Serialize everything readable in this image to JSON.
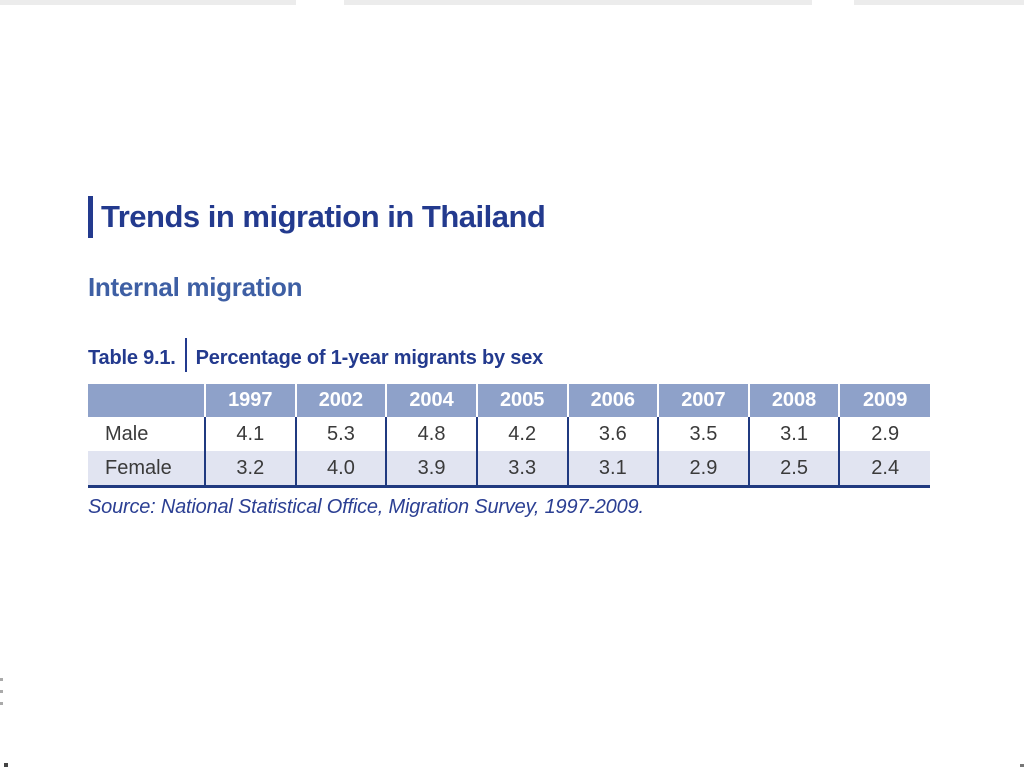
{
  "page": {
    "title": "Trends in migration in Thailand",
    "section_heading": "Internal migration",
    "table_label": "Table 9.1.",
    "table_caption": "Percentage of 1-year migrants by sex",
    "source_note": "Source:  National Statistical Office, Migration Survey, 1997-2009."
  },
  "table": {
    "columns": [
      "1997",
      "2002",
      "2004",
      "2005",
      "2006",
      "2007",
      "2008",
      "2009"
    ],
    "rows": [
      {
        "label": "Male",
        "values": [
          "4.1",
          "5.3",
          "4.8",
          "4.2",
          "3.6",
          "3.5",
          "3.1",
          "2.9"
        ]
      },
      {
        "label": "Female",
        "values": [
          "3.2",
          "4.0",
          "3.9",
          "3.3",
          "3.1",
          "2.9",
          "2.5",
          "2.4"
        ]
      }
    ]
  },
  "chart_data": {
    "type": "table",
    "title": "Percentage of 1-year migrants by sex",
    "categories": [
      "1997",
      "2002",
      "2004",
      "2005",
      "2006",
      "2007",
      "2008",
      "2009"
    ],
    "series": [
      {
        "name": "Male",
        "values": [
          4.1,
          5.3,
          4.8,
          4.2,
          3.6,
          3.5,
          3.1,
          2.9
        ]
      },
      {
        "name": "Female",
        "values": [
          3.2,
          4.0,
          3.9,
          3.3,
          3.1,
          2.9,
          2.5,
          2.4
        ]
      }
    ]
  },
  "colors": {
    "heading_navy": "#233A8E",
    "subheading_blue": "#3E5FA4",
    "table_header_bg": "#8EA1C9",
    "row_alt_bg": "#E1E4F1",
    "table_border_navy": "#203A80",
    "cell_text": "#3A3A3A",
    "source_text": "#2B3F93",
    "page_edge_gray": "#ECECEC"
  }
}
